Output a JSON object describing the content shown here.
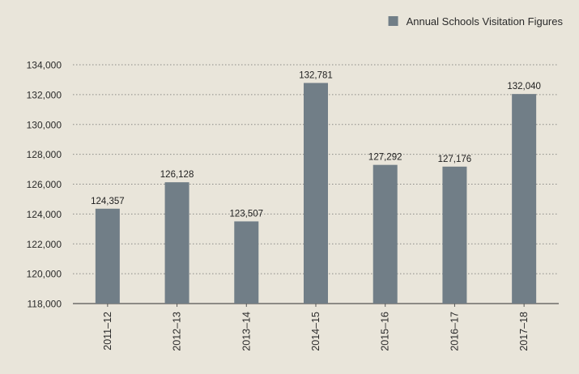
{
  "chart_data": {
    "type": "bar",
    "categories": [
      "2011–12",
      "2012–13",
      "2013–14",
      "2014–15",
      "2015–16",
      "2016–17",
      "2017–18"
    ],
    "series": [
      {
        "name": "Annual Schools Visitation Figures",
        "values": [
          124357,
          126128,
          123507,
          132781,
          127292,
          127176,
          132040
        ],
        "labels": [
          "124,357",
          "126,128",
          "123,507",
          "132,781",
          "127,292",
          "127,176",
          "132,040"
        ]
      }
    ],
    "yticks": [
      "118,000",
      "120,000",
      "122,000",
      "124,000",
      "126,000",
      "128,000",
      "130,000",
      "132,000",
      "134,000"
    ],
    "ylim": [
      118000,
      134000
    ],
    "ytick_step": 2000,
    "title": "",
    "xlabel": "",
    "ylabel": "",
    "legend_position": "top-right",
    "grid": "dotted-horizontal",
    "colors": {
      "background": "#e9e5da",
      "bar": "#717e87",
      "grid": "#8a8a86",
      "axis": "#555555"
    }
  }
}
